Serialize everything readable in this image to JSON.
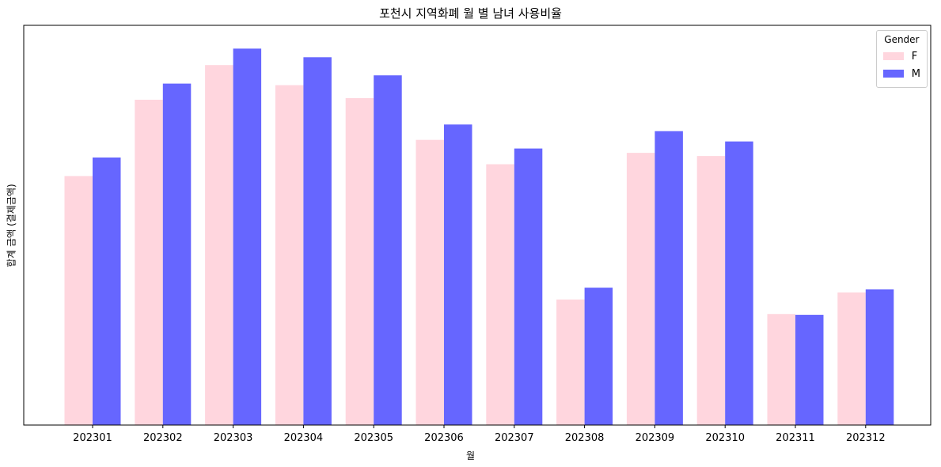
{
  "chart_data": {
    "type": "bar",
    "title": "포천시 지역화폐 월 별 남녀 사용비율",
    "xlabel": "월",
    "ylabel": "합계 금액 (결제금액)",
    "categories": [
      "202301",
      "202302",
      "202303",
      "202304",
      "202305",
      "202306",
      "202307",
      "202308",
      "202309",
      "202310",
      "202311",
      "202312"
    ],
    "series": [
      {
        "name": "F",
        "color": "#ffd6de",
        "values": [
          0.633,
          0.827,
          0.915,
          0.864,
          0.831,
          0.725,
          0.663,
          0.319,
          0.692,
          0.684,
          0.282,
          0.337
        ]
      },
      {
        "name": "M",
        "color": "#6666ff",
        "values": [
          0.68,
          0.868,
          0.957,
          0.935,
          0.889,
          0.764,
          0.703,
          0.349,
          0.747,
          0.721,
          0.28,
          0.345
        ]
      }
    ],
    "ylim": [
      0,
      1
    ],
    "y_ticks_shown": false,
    "legend": {
      "title": "Gender",
      "position": "top-right",
      "labels": [
        "F",
        "M"
      ]
    },
    "grid": false
  }
}
